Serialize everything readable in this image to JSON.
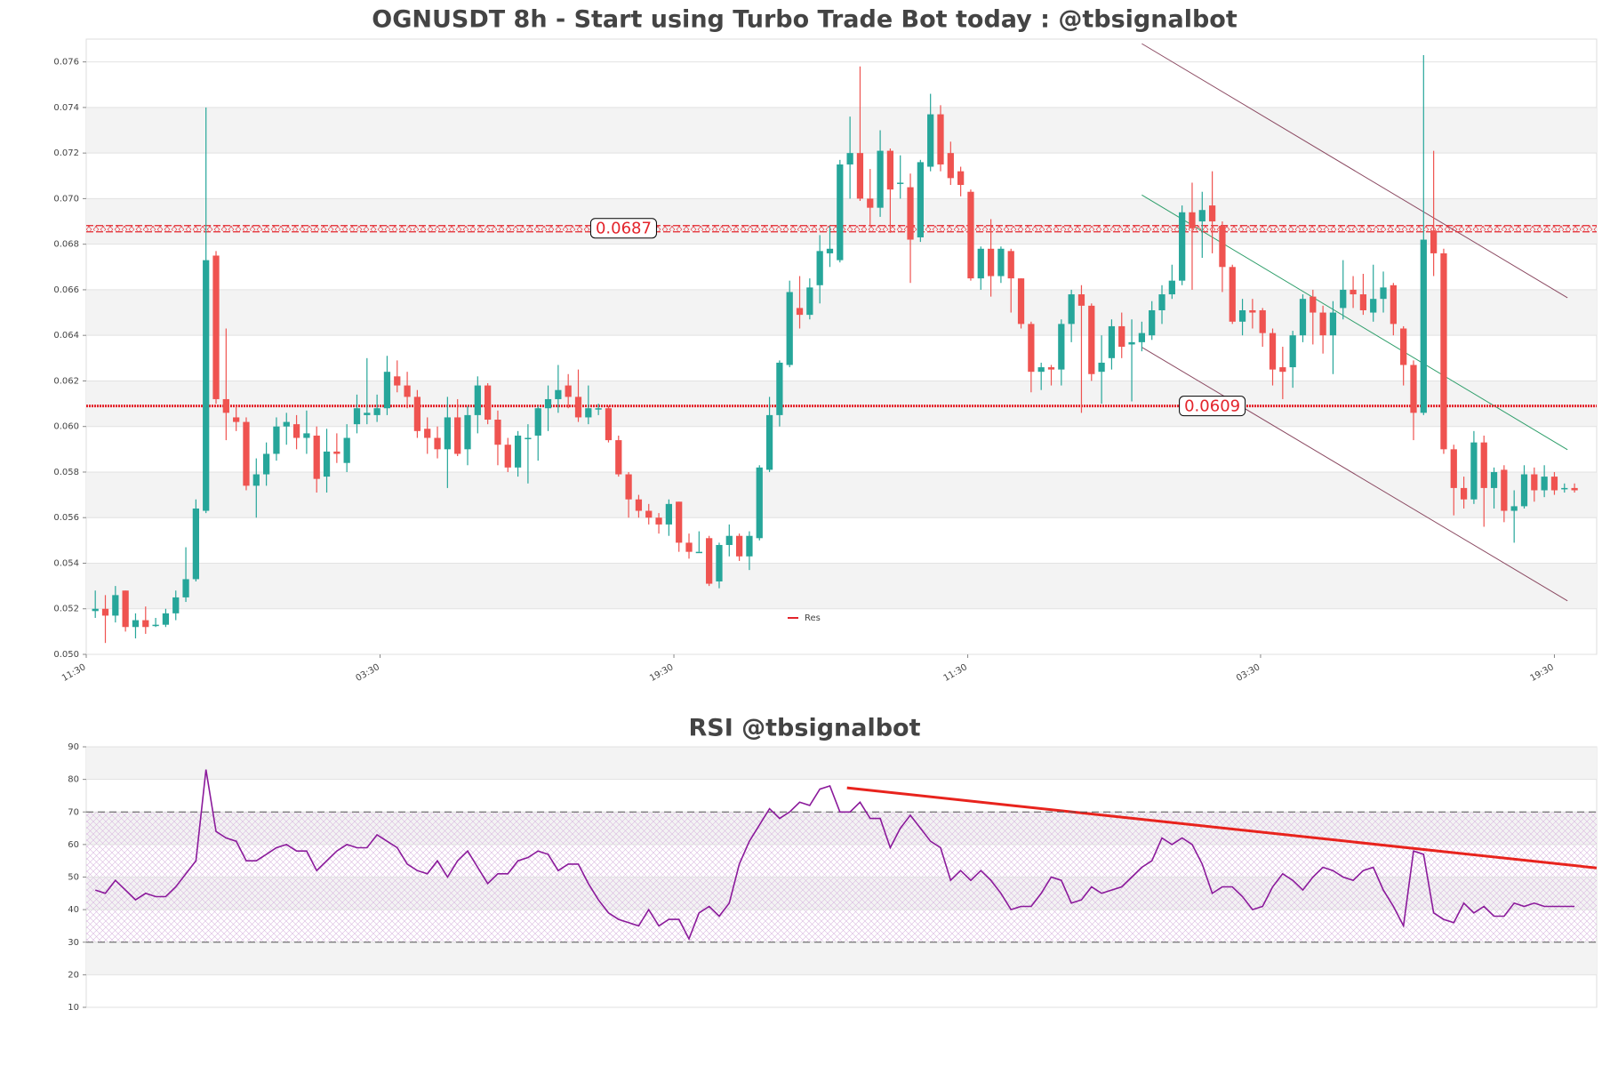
{
  "chart_data": [
    {
      "type": "candlestick",
      "title": "OGNUSDT 8h - Start using Turbo Trade Bot today : @tbsignalbot",
      "up_color": "#26a69a",
      "down_color": "#ef5350",
      "xlim": [
        -0.9,
        149.2
      ],
      "xticks": [
        {
          "value": -0.9,
          "label": "11:30"
        },
        {
          "value": 28.3,
          "label": "03:30"
        },
        {
          "value": 57.5,
          "label": "19:30"
        },
        {
          "value": 86.7,
          "label": "11:30"
        },
        {
          "value": 115.8,
          "label": "03:30"
        },
        {
          "value": 145.0,
          "label": "19:30"
        }
      ],
      "ylim": [
        0.05,
        0.077
      ],
      "yticks": [
        {
          "value": 0.05,
          "label": "0.050"
        },
        0.052,
        0.054,
        0.056,
        0.058,
        {
          "value": 0.06,
          "label": "0.060"
        },
        0.062,
        0.064,
        0.066,
        0.068,
        {
          "value": 0.07,
          "label": "0.070"
        },
        0.072,
        0.074,
        0.076
      ],
      "grid": true,
      "levels": {
        "name": "Res",
        "color": "#e3242b",
        "values": [
          0.0687,
          0.0609
        ]
      },
      "trendlines": [
        {
          "x": [
            104,
            146.3
          ],
          "y": [
            0.0768,
            0.06565
          ],
          "color": "#8b4a62"
        },
        {
          "x": [
            104,
            146.3
          ],
          "y": [
            0.06348,
            0.05235
          ],
          "color": "#8b4a62"
        },
        {
          "x": [
            104,
            146.3
          ],
          "y": [
            0.07016,
            0.05898
          ],
          "color": "#2e9e6a"
        }
      ],
      "open": [
        0.0519,
        0.052,
        0.0517,
        0.0528,
        0.0512,
        0.0515,
        0.0513,
        0.0513,
        0.0518,
        0.0525,
        0.0533,
        0.0563,
        0.0675,
        0.0612,
        0.0604,
        0.0602,
        0.0574,
        0.0579,
        0.0588,
        0.06,
        0.0601,
        0.0595,
        0.0596,
        0.0578,
        0.0589,
        0.0584,
        0.0601,
        0.0605,
        0.0605,
        0.0608,
        0.0622,
        0.0618,
        0.0613,
        0.0599,
        0.0595,
        0.059,
        0.0604,
        0.059,
        0.0605,
        0.0618,
        0.0603,
        0.0592,
        0.0582,
        0.0595,
        0.0596,
        0.0608,
        0.0612,
        0.0618,
        0.0613,
        0.0604,
        0.0608,
        0.0608,
        0.0594,
        0.0579,
        0.0568,
        0.0563,
        0.056,
        0.0557,
        0.0567,
        0.0549,
        0.0545,
        0.0551,
        0.0532,
        0.0548,
        0.0552,
        0.0543,
        0.0551,
        0.0581,
        0.0605,
        0.0627,
        0.0652,
        0.0649,
        0.0662,
        0.0676,
        0.0673,
        0.0715,
        0.072,
        0.07,
        0.0696,
        0.0721,
        0.0707,
        0.0705,
        0.0683,
        0.0714,
        0.0737,
        0.072,
        0.0712,
        0.0703,
        0.0665,
        0.0678,
        0.0666,
        0.0677,
        0.0665,
        0.0645,
        0.0624,
        0.0626,
        0.0625,
        0.0645,
        0.0658,
        0.0653,
        0.0624,
        0.063,
        0.0644,
        0.0636,
        0.0637,
        0.064,
        0.0651,
        0.0658,
        0.0664,
        0.0694,
        0.069,
        0.0697,
        0.0688,
        0.067,
        0.0646,
        0.0651,
        0.0651,
        0.0641,
        0.0626,
        0.0626,
        0.064,
        0.0657,
        0.065,
        0.064,
        0.0652,
        0.066,
        0.0658,
        0.065,
        0.0656,
        0.0662,
        0.0643,
        0.0627,
        0.0606,
        0.0686,
        0.0676,
        0.059,
        0.0573,
        0.0568,
        0.0593,
        0.0573,
        0.0581,
        0.0563,
        0.0565,
        0.0579,
        0.0572,
        0.0578,
        0.0573,
        0.0573
      ],
      "high": [
        0.0528,
        0.0526,
        0.053,
        0.0528,
        0.0518,
        0.0521,
        0.0516,
        0.052,
        0.0528,
        0.0547,
        0.0568,
        0.074,
        0.0677,
        0.0643,
        0.0609,
        0.0604,
        0.0586,
        0.0593,
        0.0604,
        0.0606,
        0.0605,
        0.0607,
        0.06,
        0.0599,
        0.0597,
        0.0601,
        0.0614,
        0.063,
        0.0614,
        0.0631,
        0.0629,
        0.0624,
        0.0616,
        0.0604,
        0.06,
        0.0613,
        0.0612,
        0.0609,
        0.0622,
        0.0619,
        0.0607,
        0.0595,
        0.0598,
        0.0601,
        0.0609,
        0.0618,
        0.0627,
        0.0623,
        0.0625,
        0.0618,
        0.061,
        0.0609,
        0.0596,
        0.058,
        0.057,
        0.0566,
        0.0562,
        0.0568,
        0.0567,
        0.0553,
        0.0554,
        0.0552,
        0.0549,
        0.0557,
        0.0553,
        0.0554,
        0.0583,
        0.0613,
        0.0629,
        0.0664,
        0.0666,
        0.0665,
        0.0684,
        0.0688,
        0.0717,
        0.0736,
        0.0758,
        0.0713,
        0.073,
        0.0722,
        0.0719,
        0.0711,
        0.0717,
        0.0746,
        0.0741,
        0.0725,
        0.0714,
        0.0704,
        0.0679,
        0.0691,
        0.0679,
        0.0678,
        0.0665,
        0.0646,
        0.0628,
        0.0627,
        0.0647,
        0.066,
        0.0662,
        0.0654,
        0.064,
        0.0647,
        0.065,
        0.0647,
        0.0646,
        0.0655,
        0.0662,
        0.0671,
        0.0697,
        0.0707,
        0.0703,
        0.0712,
        0.069,
        0.0671,
        0.0656,
        0.0656,
        0.0652,
        0.0643,
        0.0635,
        0.0642,
        0.0658,
        0.066,
        0.0653,
        0.0655,
        0.0673,
        0.0666,
        0.0667,
        0.0671,
        0.0668,
        0.0663,
        0.0644,
        0.0629,
        0.0763,
        0.0721,
        0.0678,
        0.0592,
        0.0578,
        0.0598,
        0.0596,
        0.0582,
        0.0583,
        0.0572,
        0.0583,
        0.0582,
        0.0583,
        0.058,
        0.0575,
        0.0575
      ],
      "low": [
        0.0516,
        0.0505,
        0.0514,
        0.051,
        0.0507,
        0.0509,
        0.0512,
        0.0512,
        0.0515,
        0.0523,
        0.0532,
        0.0562,
        0.061,
        0.0594,
        0.0598,
        0.0572,
        0.056,
        0.0574,
        0.0585,
        0.0592,
        0.059,
        0.0588,
        0.0571,
        0.0571,
        0.0584,
        0.058,
        0.0597,
        0.0601,
        0.0602,
        0.0605,
        0.0615,
        0.0608,
        0.0595,
        0.0588,
        0.0586,
        0.0573,
        0.0587,
        0.0583,
        0.0597,
        0.0601,
        0.0583,
        0.058,
        0.0578,
        0.0575,
        0.0585,
        0.0598,
        0.0606,
        0.0608,
        0.0602,
        0.0601,
        0.0605,
        0.0593,
        0.0578,
        0.056,
        0.056,
        0.0557,
        0.0553,
        0.0552,
        0.0545,
        0.0542,
        0.0545,
        0.053,
        0.0529,
        0.0543,
        0.0541,
        0.0537,
        0.055,
        0.058,
        0.06,
        0.0626,
        0.0643,
        0.0647,
        0.0654,
        0.067,
        0.0672,
        0.07,
        0.0699,
        0.0688,
        0.0692,
        0.0685,
        0.07,
        0.0663,
        0.0681,
        0.0712,
        0.0712,
        0.0706,
        0.0701,
        0.0664,
        0.066,
        0.0657,
        0.0663,
        0.065,
        0.0643,
        0.0615,
        0.0616,
        0.0618,
        0.0618,
        0.0637,
        0.0606,
        0.062,
        0.061,
        0.0625,
        0.063,
        0.0611,
        0.0633,
        0.0638,
        0.0645,
        0.0656,
        0.0662,
        0.066,
        0.0674,
        0.0676,
        0.0659,
        0.0645,
        0.064,
        0.0643,
        0.0635,
        0.0618,
        0.0612,
        0.0617,
        0.0637,
        0.0636,
        0.0632,
        0.0623,
        0.0647,
        0.0652,
        0.0649,
        0.0646,
        0.065,
        0.064,
        0.0618,
        0.0594,
        0.0605,
        0.0666,
        0.0588,
        0.0561,
        0.0564,
        0.0566,
        0.0556,
        0.0564,
        0.0558,
        0.0549,
        0.0564,
        0.0567,
        0.0569,
        0.057,
        0.0571,
        0.0571
      ],
      "close": [
        0.052,
        0.0517,
        0.0526,
        0.0512,
        0.0515,
        0.0512,
        0.0513,
        0.0518,
        0.0525,
        0.0533,
        0.0564,
        0.0673,
        0.0612,
        0.0606,
        0.0602,
        0.0574,
        0.0579,
        0.0588,
        0.06,
        0.0602,
        0.0595,
        0.0597,
        0.0577,
        0.0589,
        0.0588,
        0.0595,
        0.0608,
        0.0606,
        0.0608,
        0.0624,
        0.0618,
        0.0613,
        0.0598,
        0.0595,
        0.059,
        0.0604,
        0.0588,
        0.0605,
        0.0618,
        0.0603,
        0.0592,
        0.0582,
        0.0596,
        0.0595,
        0.0608,
        0.0612,
        0.0616,
        0.0613,
        0.0604,
        0.0608,
        0.0608,
        0.0594,
        0.0579,
        0.0568,
        0.0563,
        0.056,
        0.0557,
        0.0566,
        0.0549,
        0.0545,
        0.0545,
        0.0531,
        0.0548,
        0.0552,
        0.0543,
        0.0552,
        0.0582,
        0.0605,
        0.0628,
        0.0659,
        0.0649,
        0.0661,
        0.0677,
        0.0678,
        0.0715,
        0.072,
        0.07,
        0.0696,
        0.0721,
        0.0704,
        0.0707,
        0.0682,
        0.0716,
        0.0737,
        0.0715,
        0.0709,
        0.0706,
        0.0665,
        0.0678,
        0.0666,
        0.0678,
        0.0665,
        0.0645,
        0.0624,
        0.0626,
        0.0625,
        0.0645,
        0.0658,
        0.0653,
        0.0623,
        0.0628,
        0.0644,
        0.0635,
        0.0637,
        0.0641,
        0.0651,
        0.0658,
        0.0664,
        0.0694,
        0.0687,
        0.0695,
        0.069,
        0.067,
        0.0646,
        0.0651,
        0.065,
        0.0641,
        0.0625,
        0.0624,
        0.064,
        0.0656,
        0.065,
        0.064,
        0.065,
        0.066,
        0.0658,
        0.0651,
        0.0656,
        0.0661,
        0.0645,
        0.0627,
        0.0606,
        0.0682,
        0.0676,
        0.059,
        0.0573,
        0.0568,
        0.0593,
        0.0573,
        0.058,
        0.0563,
        0.0565,
        0.0579,
        0.0572,
        0.0578,
        0.0572,
        0.0573,
        0.0572
      ]
    },
    {
      "type": "line",
      "title": "RSI @tbsignalbot",
      "color": "#8b1a9b",
      "xlim": [
        -0.9,
        149.2
      ],
      "ylim": [
        10,
        90
      ],
      "yticks": [
        10,
        20,
        30,
        40,
        50,
        60,
        70,
        80,
        90
      ],
      "grid": true,
      "hlines": [
        30,
        70
      ],
      "trendlines": [
        {
          "x": [
            74.7,
            149.2
          ],
          "y": [
            77.4,
            52.8
          ],
          "color": "#e8231d"
        }
      ],
      "values": [
        46,
        45,
        49,
        46,
        43,
        45,
        44,
        44,
        47,
        51,
        55,
        83,
        64,
        62,
        61,
        55,
        55,
        57,
        59,
        60,
        58,
        58,
        52,
        55,
        58,
        60,
        59,
        59,
        63,
        61,
        59,
        54,
        52,
        51,
        55,
        50,
        55,
        58,
        53,
        48,
        51,
        51,
        55,
        56,
        58,
        57,
        52,
        54,
        54,
        48,
        43,
        39,
        37,
        36,
        35,
        40,
        35,
        37,
        37,
        31,
        39,
        41,
        38,
        42,
        54,
        61,
        66,
        71,
        68,
        70,
        73,
        72,
        77,
        78,
        70,
        70,
        73,
        68,
        68,
        59,
        65,
        69,
        65,
        61,
        59,
        49,
        52,
        49,
        52,
        49,
        45,
        40,
        41,
        41,
        45,
        50,
        49,
        42,
        43,
        47,
        45,
        46,
        47,
        50,
        53,
        55,
        62,
        60,
        62,
        60,
        54,
        45,
        47,
        47,
        44,
        40,
        41,
        47,
        51,
        49,
        46,
        50,
        53,
        52,
        50,
        49,
        52,
        53,
        46,
        41,
        35,
        58,
        57,
        39,
        37,
        36,
        42,
        39,
        41,
        38,
        38,
        42,
        41,
        42,
        41,
        41,
        41,
        41
      ]
    }
  ]
}
